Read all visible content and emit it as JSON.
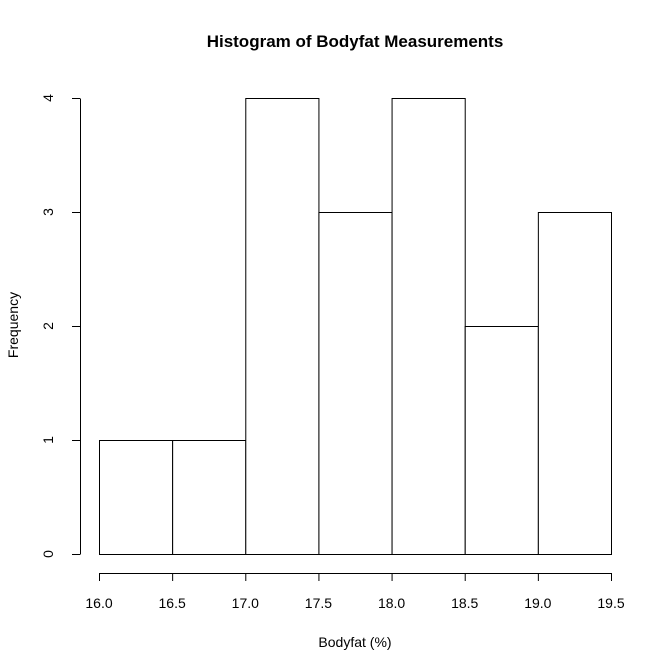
{
  "chart_data": {
    "type": "bar",
    "title": "Histogram of Bodyfat Measurements",
    "xlabel": "Bodyfat (%)",
    "ylabel": "Frequency",
    "bins": [
      {
        "start": 16.0,
        "end": 16.5,
        "count": 1
      },
      {
        "start": 16.5,
        "end": 17.0,
        "count": 1
      },
      {
        "start": 17.0,
        "end": 17.5,
        "count": 4
      },
      {
        "start": 17.5,
        "end": 18.0,
        "count": 3
      },
      {
        "start": 18.0,
        "end": 18.5,
        "count": 4
      },
      {
        "start": 18.5,
        "end": 19.0,
        "count": 2
      },
      {
        "start": 19.0,
        "end": 19.5,
        "count": 3
      }
    ],
    "xlim": [
      16.0,
      19.5
    ],
    "ylim": [
      0,
      4
    ],
    "xticks": [
      "16.0",
      "16.5",
      "17.0",
      "17.5",
      "18.0",
      "18.5",
      "19.0",
      "19.5"
    ],
    "yticks": [
      "0",
      "1",
      "2",
      "3",
      "4"
    ],
    "grid": false,
    "colors": {
      "bar_fill": "#ffffff",
      "bar_stroke": "#000000"
    }
  }
}
